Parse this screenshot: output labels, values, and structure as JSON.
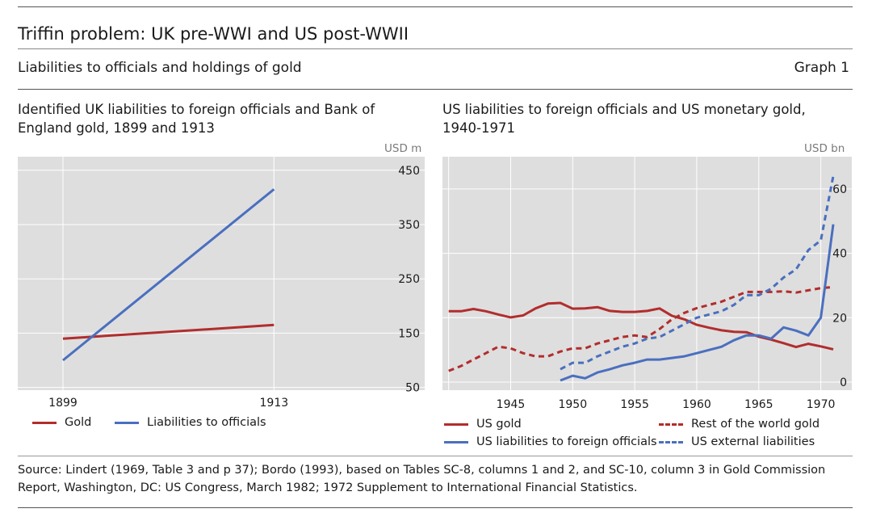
{
  "header": {
    "title": "Triffin problem: UK pre-WWI and US post-WWII",
    "subtitle": "Liabilities to officials and holdings of gold",
    "graph_number": "Graph 1"
  },
  "colors": {
    "gold": "#b22d2d",
    "liabilities": "#4a6fbf",
    "plot_bg": "#dedede",
    "grid": "#ffffff"
  },
  "chart_data": [
    {
      "type": "line",
      "title": "Identified UK liabilities to foreign officials and Bank of England gold, 1899 and 1913",
      "unit": "USD m",
      "x": [
        1899,
        1913
      ],
      "xlim": [
        1896,
        1923
      ],
      "xticks": [
        1899,
        1913
      ],
      "ylim": [
        45,
        475
      ],
      "yticks": [
        50,
        150,
        250,
        350,
        450
      ],
      "series": [
        {
          "name": "Gold",
          "color_key": "gold",
          "dash": false,
          "values": [
            140,
            165
          ]
        },
        {
          "name": "Liabilities to officials",
          "color_key": "liabilities",
          "dash": false,
          "values": [
            100,
            415
          ]
        }
      ],
      "legend": [
        "Gold",
        "Liabilities to officials"
      ]
    },
    {
      "type": "line",
      "title": "US liabilities to foreign officials and US monetary gold, 1940-1971",
      "unit": "USD bn",
      "xlim": [
        1939.5,
        1972.5
      ],
      "xticks": [
        1945,
        1950,
        1955,
        1960,
        1965,
        1970
      ],
      "ylim": [
        -2.5,
        70
      ],
      "yticks": [
        0,
        20,
        40,
        60
      ],
      "series": [
        {
          "name": "US gold",
          "color_key": "gold",
          "dash": false,
          "x": [
            1940,
            1941,
            1942,
            1943,
            1944,
            1945,
            1946,
            1947,
            1948,
            1949,
            1950,
            1951,
            1952,
            1953,
            1954,
            1955,
            1956,
            1957,
            1958,
            1959,
            1960,
            1961,
            1962,
            1963,
            1964,
            1965,
            1966,
            1967,
            1968,
            1969,
            1970,
            1971
          ],
          "values": [
            22,
            22,
            22.7,
            22,
            21,
            20.1,
            20.7,
            22.9,
            24.4,
            24.6,
            22.8,
            22.9,
            23.3,
            22.1,
            21.8,
            21.8,
            22.1,
            22.9,
            20.6,
            19.5,
            17.8,
            16.9,
            16.1,
            15.6,
            15.5,
            14.1,
            13.2,
            12.1,
            10.9,
            11.9,
            11.1,
            10.2
          ]
        },
        {
          "name": "Rest of the world gold",
          "color_key": "gold",
          "dash": true,
          "x": [
            1940,
            1941,
            1942,
            1943,
            1944,
            1945,
            1946,
            1947,
            1948,
            1949,
            1950,
            1951,
            1952,
            1953,
            1954,
            1955,
            1956,
            1957,
            1958,
            1959,
            1960,
            1961,
            1962,
            1963,
            1964,
            1965,
            1966,
            1967,
            1968,
            1969,
            1970,
            1971
          ],
          "values": [
            3.5,
            5,
            7,
            9,
            11,
            10.5,
            9,
            8,
            8,
            9.5,
            10.5,
            10.5,
            12,
            13,
            14,
            14.5,
            14,
            16.5,
            19.5,
            21.5,
            23,
            24,
            25,
            26.5,
            28,
            28,
            28,
            28.2,
            27.8,
            28.5,
            29.2,
            29.5
          ]
        },
        {
          "name": "US liabilities to foreign officials",
          "color_key": "liabilities",
          "dash": false,
          "x": [
            1949,
            1950,
            1951,
            1952,
            1953,
            1954,
            1955,
            1956,
            1957,
            1958,
            1959,
            1960,
            1961,
            1962,
            1963,
            1964,
            1965,
            1966,
            1967,
            1968,
            1969,
            1970,
            1971
          ],
          "values": [
            0.5,
            2,
            1.2,
            3,
            4,
            5.2,
            6,
            7,
            7,
            7.5,
            8,
            9,
            10,
            11,
            13,
            14.5,
            14.5,
            13.5,
            17,
            16,
            14.5,
            20,
            49
          ]
        },
        {
          "name": "US external liabilities",
          "color_key": "liabilities",
          "dash": true,
          "x": [
            1949,
            1950,
            1951,
            1952,
            1953,
            1954,
            1955,
            1956,
            1957,
            1958,
            1959,
            1960,
            1961,
            1962,
            1963,
            1964,
            1965,
            1966,
            1967,
            1968,
            1969,
            1970,
            1971
          ],
          "values": [
            4,
            6,
            6,
            8,
            9.5,
            11,
            12,
            13.5,
            14,
            16,
            18,
            20,
            21,
            22,
            24,
            27,
            27,
            29,
            32.5,
            35,
            41,
            44,
            64
          ]
        }
      ],
      "legend": [
        "US gold",
        "Rest of the world gold",
        "US liabilities to foreign officials",
        "US external liabilities"
      ]
    }
  ],
  "source": "Source: Lindert (1969, Table 3 and p 37); Bordo (1993), based on Tables SC-8, columns 1 and 2, and SC-10, column 3 in Gold Commission Report, Washington, DC: US Congress, March 1982; 1972 Supplement to International Financial Statistics."
}
